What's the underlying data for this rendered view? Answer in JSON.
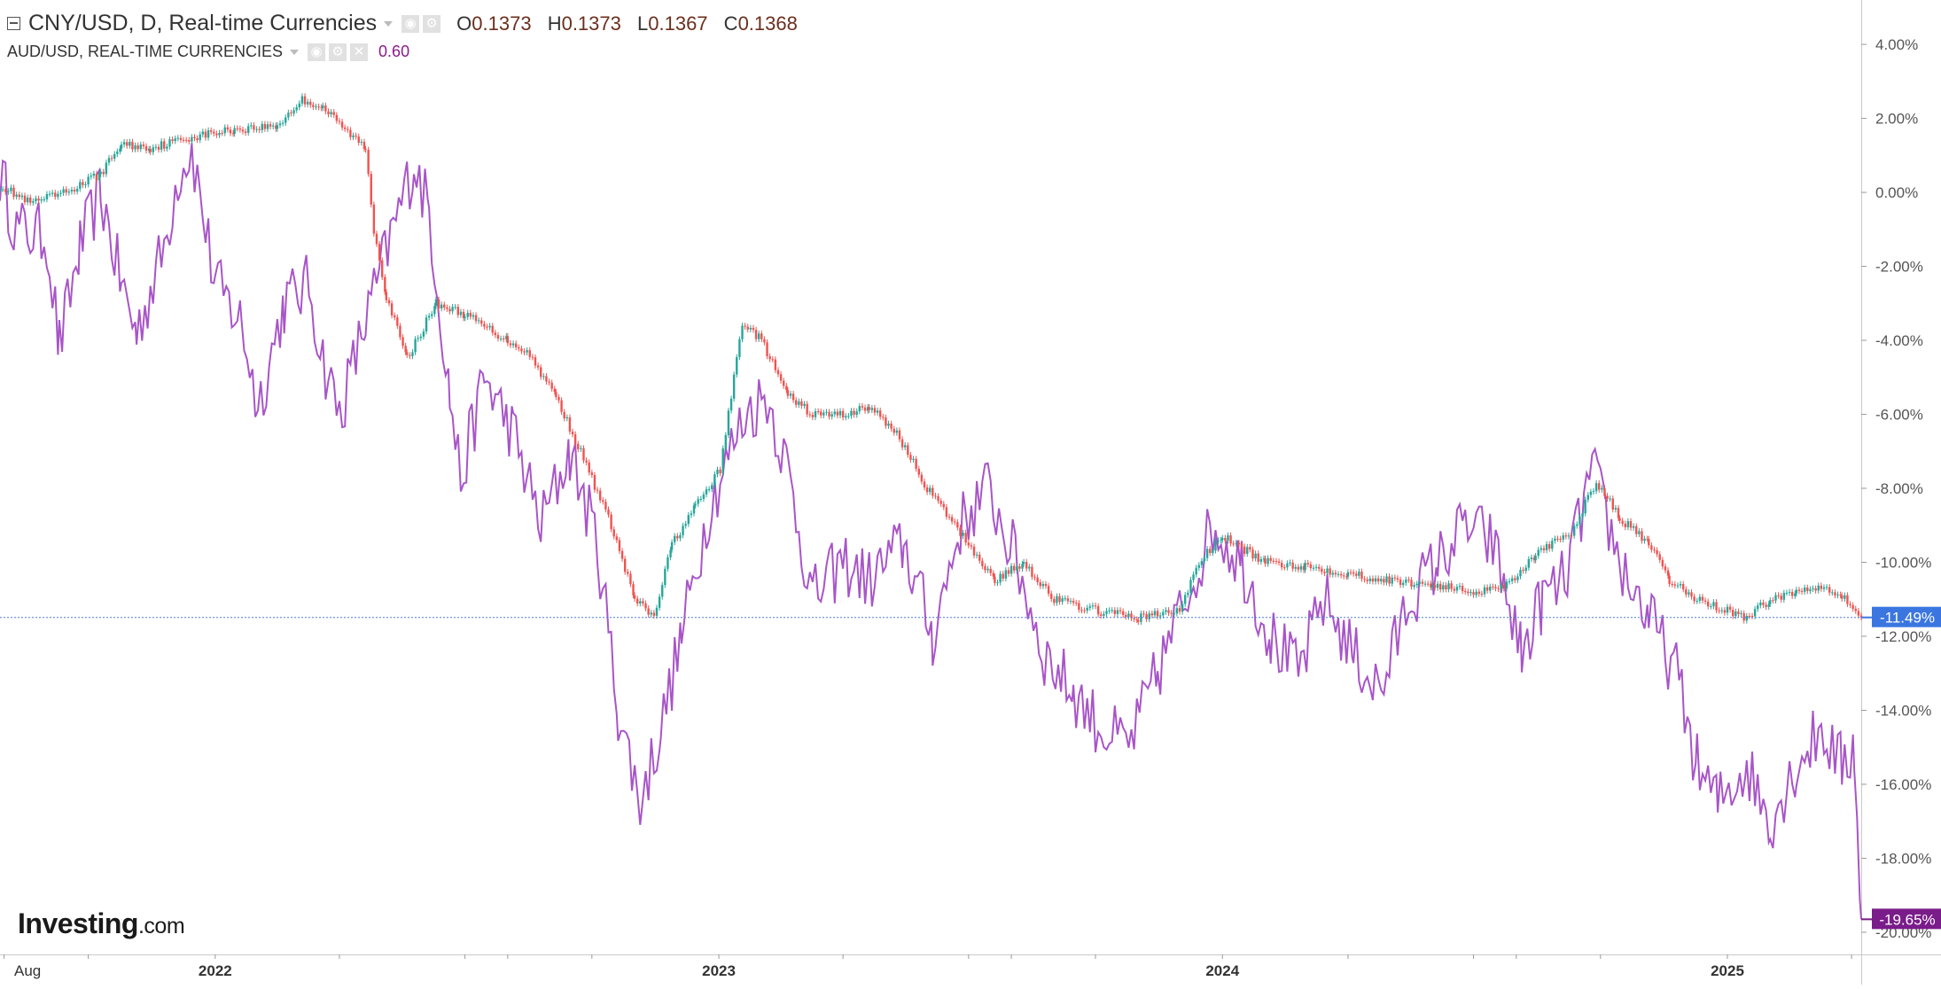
{
  "legend": {
    "main_title": "CNY/USD, D, Real-time Currencies",
    "ohlc": [
      {
        "key": "O",
        "value": "0.1373"
      },
      {
        "key": "H",
        "value": "0.1373"
      },
      {
        "key": "L",
        "value": "0.1367"
      },
      {
        "key": "C",
        "value": "0.1368"
      }
    ],
    "sub_title": "AUD/USD, REAL-TIME CURRENCIES",
    "sub_value": "0.60"
  },
  "branding": {
    "logo_main": "Investing",
    "logo_suffix": ".com"
  },
  "colors": {
    "up": "#26a69a",
    "down": "#ef5350",
    "aud_line": "#a855c8",
    "price_line": "#4a7fd6",
    "aud_badge": "#7a1c8a",
    "cny_badge": "#3b76e0",
    "axis_text": "#555555"
  },
  "chart_data": {
    "type": "line",
    "title": "",
    "xlabel": "",
    "ylabel": "",
    "y_unit": "%",
    "ylim": [
      -20.6,
      5.2
    ],
    "grid": false,
    "y_ticks": [
      "4.00%",
      "2.00%",
      "0.00%",
      "-2.00%",
      "-4.00%",
      "-6.00%",
      "-8.00%",
      "-10.00%",
      "-12.00%",
      "-14.00%",
      "-16.00%",
      "-18.00%",
      "-20.00%"
    ],
    "y_tick_values": [
      4,
      2,
      0,
      -2,
      -4,
      -6,
      -8,
      -10,
      -12,
      -14,
      -16,
      -18,
      -20
    ],
    "x_range": [
      "2021-07-29",
      "2025-04-08"
    ],
    "x_ticks": [
      {
        "label": "Aug",
        "date": "2021-08-01",
        "bold": false
      },
      {
        "label": "2022",
        "date": "2022-01-01",
        "bold": true
      },
      {
        "label": "2023",
        "date": "2023-01-01",
        "bold": true
      },
      {
        "label": "2024",
        "date": "2024-01-01",
        "bold": true
      },
      {
        "label": "2025",
        "date": "2025-01-01",
        "bold": true
      }
    ],
    "series": [
      {
        "name": "CNY/USD",
        "style": "candlestick",
        "last_label": "-11.49%",
        "last_value": -11.49,
        "points": [
          [
            "2021-07-29",
            0.2
          ],
          [
            "2021-08-20",
            -0.3
          ],
          [
            "2021-09-15",
            0.0
          ],
          [
            "2021-10-10",
            0.5
          ],
          [
            "2021-10-25",
            1.3
          ],
          [
            "2021-11-15",
            1.2
          ],
          [
            "2021-12-15",
            1.5
          ],
          [
            "2022-01-15",
            1.7
          ],
          [
            "2022-02-15",
            1.8
          ],
          [
            "2022-03-05",
            2.5
          ],
          [
            "2022-03-20",
            2.3
          ],
          [
            "2022-04-05",
            1.7
          ],
          [
            "2022-04-20",
            1.2
          ],
          [
            "2022-04-26",
            -1.0
          ],
          [
            "2022-05-05",
            -2.8
          ],
          [
            "2022-05-20",
            -4.5
          ],
          [
            "2022-06-10",
            -3.0
          ],
          [
            "2022-07-01",
            -3.3
          ],
          [
            "2022-08-01",
            -4.0
          ],
          [
            "2022-08-15",
            -4.3
          ],
          [
            "2022-09-05",
            -5.5
          ],
          [
            "2022-09-25",
            -7.2
          ],
          [
            "2022-10-15",
            -9.0
          ],
          [
            "2022-11-01",
            -11.0
          ],
          [
            "2022-11-15",
            -11.5
          ],
          [
            "2022-11-28",
            -9.5
          ],
          [
            "2022-12-15",
            -8.5
          ],
          [
            "2023-01-02",
            -7.5
          ],
          [
            "2023-01-12",
            -5.0
          ],
          [
            "2023-01-18",
            -3.5
          ],
          [
            "2023-02-01",
            -4.0
          ],
          [
            "2023-02-20",
            -5.5
          ],
          [
            "2023-03-10",
            -6.0
          ],
          [
            "2023-04-01",
            -6.0
          ],
          [
            "2023-04-20",
            -5.8
          ],
          [
            "2023-05-10",
            -6.5
          ],
          [
            "2023-06-01",
            -8.0
          ],
          [
            "2023-07-01",
            -9.5
          ],
          [
            "2023-07-20",
            -10.5
          ],
          [
            "2023-08-10",
            -10.0
          ],
          [
            "2023-09-01",
            -11.0
          ],
          [
            "2023-10-01",
            -11.3
          ],
          [
            "2023-11-01",
            -11.5
          ],
          [
            "2023-12-01",
            -11.3
          ],
          [
            "2023-12-15",
            -10.0
          ],
          [
            "2024-01-01",
            -9.3
          ],
          [
            "2024-02-01",
            -10.0
          ],
          [
            "2024-03-01",
            -10.1
          ],
          [
            "2024-04-01",
            -10.3
          ],
          [
            "2024-05-01",
            -10.5
          ],
          [
            "2024-06-01",
            -10.6
          ],
          [
            "2024-07-01",
            -10.8
          ],
          [
            "2024-07-25",
            -10.6
          ],
          [
            "2024-08-15",
            -9.8
          ],
          [
            "2024-09-10",
            -9.2
          ],
          [
            "2024-09-28",
            -7.8
          ],
          [
            "2024-10-15",
            -8.8
          ],
          [
            "2024-11-05",
            -9.5
          ],
          [
            "2024-11-20",
            -10.5
          ],
          [
            "2024-12-10",
            -11.0
          ],
          [
            "2025-01-01",
            -11.3
          ],
          [
            "2025-01-15",
            -11.5
          ],
          [
            "2025-02-01",
            -11.0
          ],
          [
            "2025-02-20",
            -10.8
          ],
          [
            "2025-03-10",
            -10.6
          ],
          [
            "2025-03-25",
            -10.9
          ],
          [
            "2025-04-08",
            -11.49
          ]
        ]
      },
      {
        "name": "AUD/USD",
        "style": "line",
        "last_label": "-19.65%",
        "last_value": -19.65,
        "points": [
          [
            "2021-07-29",
            0.5
          ],
          [
            "2021-08-10",
            -1.0
          ],
          [
            "2021-09-01",
            -1.2
          ],
          [
            "2021-09-10",
            -4.2
          ],
          [
            "2021-09-25",
            -1.5
          ],
          [
            "2021-10-10",
            0.0
          ],
          [
            "2021-10-25",
            -2.5
          ],
          [
            "2021-11-05",
            -3.8
          ],
          [
            "2021-11-25",
            -1.5
          ],
          [
            "2021-12-05",
            0.5
          ],
          [
            "2021-12-15",
            1.2
          ],
          [
            "2022-01-01",
            -2.5
          ],
          [
            "2022-01-20",
            -3.5
          ],
          [
            "2022-02-01",
            -5.8
          ],
          [
            "2022-02-20",
            -3.0
          ],
          [
            "2022-03-10",
            -2.5
          ],
          [
            "2022-03-20",
            -4.5
          ],
          [
            "2022-04-01",
            -6.0
          ],
          [
            "2022-04-20",
            -3.5
          ],
          [
            "2022-05-10",
            -1.0
          ],
          [
            "2022-05-25",
            0.8
          ],
          [
            "2022-06-05",
            -0.5
          ],
          [
            "2022-06-20",
            -5.5
          ],
          [
            "2022-06-28",
            -7.8
          ],
          [
            "2022-07-15",
            -5.0
          ],
          [
            "2022-08-05",
            -6.5
          ],
          [
            "2022-08-25",
            -9.0
          ],
          [
            "2022-09-15",
            -7.0
          ],
          [
            "2022-10-05",
            -9.5
          ],
          [
            "2022-10-20",
            -14.0
          ],
          [
            "2022-11-05",
            -16.5
          ],
          [
            "2022-11-20",
            -14.5
          ],
          [
            "2022-12-05",
            -12.0
          ],
          [
            "2022-12-25",
            -8.5
          ],
          [
            "2023-01-20",
            -6.0
          ],
          [
            "2023-02-05",
            -5.5
          ],
          [
            "2023-02-20",
            -7.5
          ],
          [
            "2023-03-10",
            -11.0
          ],
          [
            "2023-04-01",
            -10.0
          ],
          [
            "2023-04-20",
            -10.5
          ],
          [
            "2023-05-15",
            -9.5
          ],
          [
            "2023-06-05",
            -12.0
          ],
          [
            "2023-06-25",
            -9.0
          ],
          [
            "2023-07-15",
            -8.0
          ],
          [
            "2023-08-05",
            -10.0
          ],
          [
            "2023-08-25",
            -12.5
          ],
          [
            "2023-09-15",
            -13.5
          ],
          [
            "2023-10-05",
            -14.5
          ],
          [
            "2023-10-25",
            -15.0
          ],
          [
            "2023-11-15",
            -13.0
          ],
          [
            "2023-12-05",
            -11.0
          ],
          [
            "2023-12-25",
            -9.0
          ],
          [
            "2024-01-15",
            -10.0
          ],
          [
            "2024-02-05",
            -12.0
          ],
          [
            "2024-02-25",
            -13.0
          ],
          [
            "2024-03-15",
            -11.0
          ],
          [
            "2024-04-05",
            -12.5
          ],
          [
            "2024-04-25",
            -13.5
          ],
          [
            "2024-05-15",
            -11.0
          ],
          [
            "2024-06-05",
            -10.0
          ],
          [
            "2024-06-25",
            -9.0
          ],
          [
            "2024-07-15",
            -9.5
          ],
          [
            "2024-08-05",
            -12.5
          ],
          [
            "2024-08-20",
            -11.0
          ],
          [
            "2024-09-05",
            -10.5
          ],
          [
            "2024-09-25",
            -7.5
          ],
          [
            "2024-10-15",
            -10.0
          ],
          [
            "2024-11-05",
            -11.5
          ],
          [
            "2024-11-25",
            -13.0
          ],
          [
            "2024-12-10",
            -15.5
          ],
          [
            "2024-12-25",
            -16.5
          ],
          [
            "2025-01-15",
            -15.5
          ],
          [
            "2025-02-01",
            -17.0
          ],
          [
            "2025-02-20",
            -15.5
          ],
          [
            "2025-03-10",
            -14.5
          ],
          [
            "2025-03-25",
            -15.5
          ],
          [
            "2025-04-03",
            -15.0
          ],
          [
            "2025-04-08",
            -19.65
          ]
        ]
      }
    ]
  }
}
